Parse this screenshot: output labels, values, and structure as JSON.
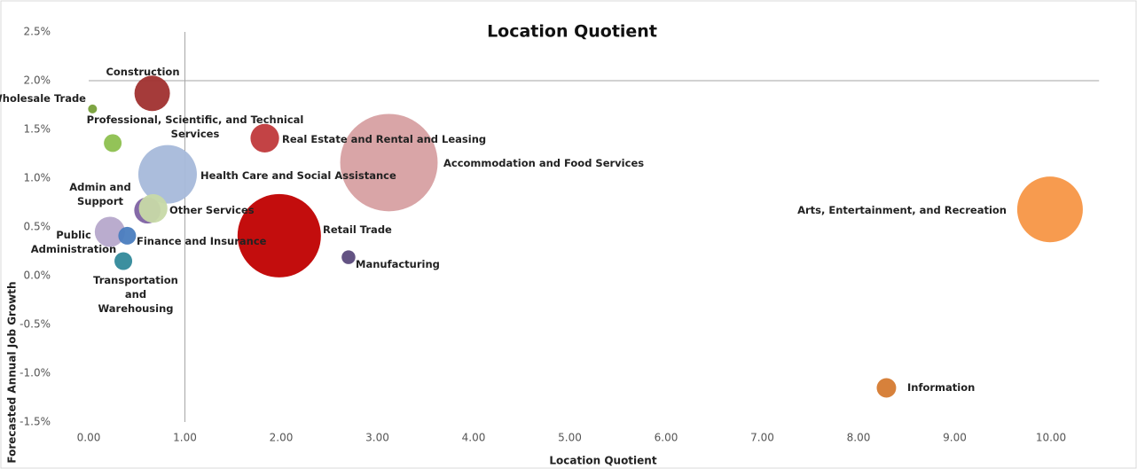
{
  "chart_data": {
    "type": "bubble",
    "title": "Location Quotient",
    "x_label": "Location Quotient",
    "y_label": "Forecasted Annual Job Growth",
    "labels": [
      "Construction",
      "Wholesale Trade",
      "Professional, Scientific, and Technical Services",
      "Real Estate and Rental and Leasing",
      "Accommodation and Food Services",
      "Health Care and Social Assistance",
      "Admin and Support",
      "Other Services",
      "Retail Trade",
      "Arts, Entertainment, and Recreation",
      "Public Administration",
      "Finance and Insurance",
      "Transportation and Warehousing",
      "Manufacturing",
      "Information"
    ],
    "x": [
      0.66,
      0.04,
      0.25,
      1.83,
      3.12,
      0.82,
      0.61,
      0.67,
      1.98,
      9.99,
      0.22,
      0.4,
      0.36,
      2.7,
      8.29
    ],
    "values": [
      1.87,
      1.71,
      1.36,
      1.41,
      1.16,
      1.04,
      0.67,
      0.69,
      0.41,
      0.68,
      0.45,
      0.41,
      0.15,
      0.19,
      -1.15
    ],
    "sizes": [
      40,
      2.5,
      10,
      26,
      302,
      109,
      22,
      26,
      221,
      137,
      29,
      10,
      10,
      6,
      12
    ],
    "colors": [
      "#a0302f",
      "#77a039",
      "#8dc04f",
      "#c0393b",
      "#d7a0a2",
      "#a7b9da",
      "#7e62a3",
      "#c7d9a7",
      "#c00000",
      "#f79646",
      "#b6a8cb",
      "#4a7dbf",
      "#31899a",
      "#5b4a7c",
      "#d57a30"
    ],
    "xlim": [
      0,
      10.5
    ],
    "ylim": [
      -1.5,
      2.5
    ],
    "xticks": [
      {
        "value": 0,
        "label": "0.00"
      },
      {
        "value": 1,
        "label": "1.00"
      },
      {
        "value": 2,
        "label": "2.00"
      },
      {
        "value": 3,
        "label": "3.00"
      },
      {
        "value": 4,
        "label": "4.00"
      },
      {
        "value": 5,
        "label": "5.00"
      },
      {
        "value": 6,
        "label": "6.00"
      },
      {
        "value": 7,
        "label": "7.00"
      },
      {
        "value": 8,
        "label": "8.00"
      },
      {
        "value": 9,
        "label": "9.00"
      },
      {
        "value": 10,
        "label": "10.00"
      }
    ],
    "yticks": [
      {
        "value": 2.5,
        "label": "2.5%"
      },
      {
        "value": 2.0,
        "label": "2.0%"
      },
      {
        "value": 1.5,
        "label": "1.5%"
      },
      {
        "value": 1.0,
        "label": "1.0%"
      },
      {
        "value": 0.5,
        "label": "0.5%"
      },
      {
        "value": 0,
        "label": "0.0%"
      },
      {
        "value": -0.5,
        "label": "-0.5%"
      },
      {
        "value": -1.0,
        "label": "-1.0%"
      },
      {
        "value": -1.5,
        "label": "-1.5%"
      }
    ],
    "reference_x": 1,
    "reference_y": 2.0
  }
}
